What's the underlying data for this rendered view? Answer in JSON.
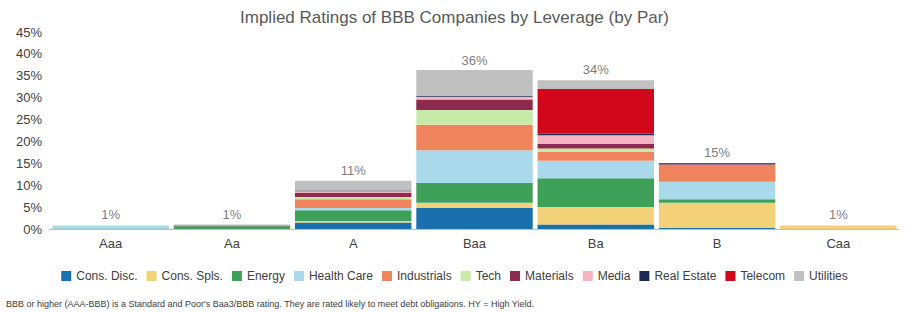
{
  "chart_data": {
    "type": "bar",
    "title": "Implied Ratings of BBB Companies by Leverage (by Par)",
    "categories": [
      "Aaa",
      "Aa",
      "A",
      "Baa",
      "Ba",
      "B",
      "Caa"
    ],
    "stacked": true,
    "grid": false,
    "legend": "bottom",
    "data_labels": false,
    "series": [
      {
        "name": "Cons. Disc.",
        "color": "#1a6faf",
        "values": [
          0,
          0,
          1.5,
          4.8,
          1,
          0.2,
          0
        ]
      },
      {
        "name": "Cons. Spls.",
        "color": "#f2d179",
        "values": [
          0,
          0,
          0.3,
          1.2,
          4,
          5.8,
          0.8
        ]
      },
      {
        "name": "Energy",
        "color": "#3fa05a",
        "values": [
          0.1,
          0.6,
          2.5,
          4.5,
          6.6,
          0.8,
          0
        ]
      },
      {
        "name": "Health Care",
        "color": "#a9d9ea",
        "values": [
          0.7,
          0,
          0.5,
          7.5,
          4,
          4,
          0
        ]
      },
      {
        "name": "Industrials",
        "color": "#f0845e",
        "values": [
          0,
          0,
          2,
          5.8,
          2,
          3.9,
          0
        ]
      },
      {
        "name": "Tech",
        "color": "#c8eaa8",
        "values": [
          0,
          0,
          0.5,
          3.4,
          0.8,
          0,
          0
        ]
      },
      {
        "name": "Materials",
        "color": "#8e2a4e",
        "values": [
          0,
          0.2,
          1,
          2.4,
          1,
          0.1,
          0
        ]
      },
      {
        "name": "Media",
        "color": "#f7b3c2",
        "values": [
          0,
          0,
          0.3,
          0.6,
          2,
          0,
          0
        ]
      },
      {
        "name": "Real Estate",
        "color": "#1b2a55",
        "values": [
          0,
          0,
          0.2,
          0.2,
          0.4,
          0.2,
          0
        ]
      },
      {
        "name": "Telecom",
        "color": "#d3071c",
        "values": [
          0,
          0,
          0,
          0,
          10.2,
          0.1,
          0
        ]
      },
      {
        "name": "Utilities",
        "color": "#c0c0c0",
        "values": [
          0,
          0.2,
          2.2,
          5.9,
          2,
          0,
          0
        ]
      }
    ],
    "totals": [
      1,
      1,
      11,
      36,
      34,
      15,
      1
    ],
    "total_labels": [
      "1%",
      "1%",
      "11%",
      "36%",
      "34%",
      "15%",
      "1%"
    ],
    "ylim": [
      0,
      45
    ],
    "yticks": [
      {
        "value": 0,
        "label": "0%"
      },
      {
        "value": 5,
        "label": "5%"
      },
      {
        "value": 10,
        "label": "10%"
      },
      {
        "value": 15,
        "label": "15%"
      },
      {
        "value": 20,
        "label": "20%"
      },
      {
        "value": 25,
        "label": "25%"
      },
      {
        "value": 30,
        "label": "30%"
      },
      {
        "value": 35,
        "label": "35%"
      },
      {
        "value": 40,
        "label": "40%"
      },
      {
        "value": 45,
        "label": "45%"
      }
    ],
    "footnote": "BBB or higher (AAA-BBB) is a Standard and Poor's Baa3/BBB rating. They are rated likely to meet debt obligations. HY = High Yield."
  }
}
